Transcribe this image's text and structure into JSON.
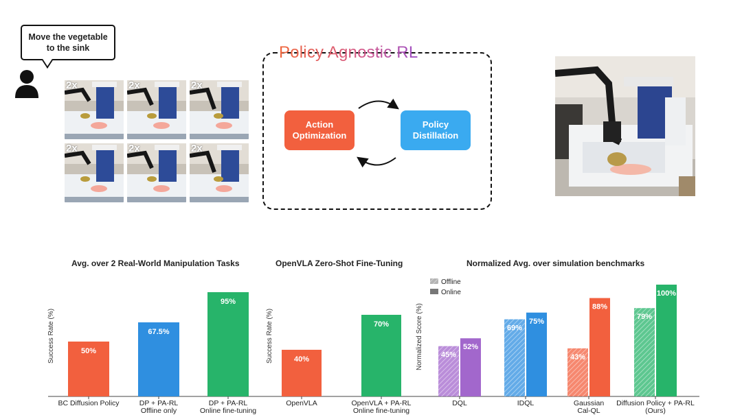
{
  "instruction": {
    "line1": "Move the vegetable",
    "line2": "to the sink"
  },
  "frames": {
    "speed_label": "2x",
    "count": 6
  },
  "pa_rl": {
    "title": "Policy Agnostic RL",
    "left_box": [
      "Action",
      "Optimization"
    ],
    "right_box": [
      "Policy",
      "Distillation"
    ]
  },
  "colors": {
    "red": "#f2603e",
    "blue": "#2f8fe0",
    "green": "#27b46a",
    "purple": "#a267cc",
    "pa_left": "#f2603e",
    "pa_right": "#3aaaf0"
  },
  "chart_data": [
    {
      "type": "bar",
      "title": "Avg. over 2 Real-World Manipulation Tasks",
      "ylabel": "Success Rate (%)",
      "ylim": [
        0,
        100
      ],
      "categories": [
        [
          "BC Diffusion Policy"
        ],
        [
          "DP + PA-RL",
          "Offline only"
        ],
        [
          "DP + PA-RL",
          "Online fine-tuning"
        ]
      ],
      "values": [
        50,
        67.5,
        95
      ],
      "labels": [
        "50%",
        "67.5%",
        "95%"
      ],
      "colors": [
        "#f2603e",
        "#2f8fe0",
        "#27b46a"
      ]
    },
    {
      "type": "bar",
      "title": "OpenVLA Zero-Shot Fine-Tuning",
      "ylabel": "Success Rate (%)",
      "ylim": [
        0,
        100
      ],
      "categories": [
        [
          "OpenVLA"
        ],
        [
          "OpenVLA + PA-RL",
          "Online fine-tuning"
        ]
      ],
      "values": [
        40,
        70
      ],
      "labels": [
        "40%",
        "70%"
      ],
      "colors": [
        "#f2603e",
        "#27b46a"
      ]
    },
    {
      "type": "bar",
      "title": "Normalized Avg. over simulation benchmarks",
      "ylabel": "Normalized Score (%)",
      "ylim": [
        0,
        100
      ],
      "legend": {
        "position": "top-left",
        "entries": [
          "Offline",
          "Online"
        ]
      },
      "categories": [
        [
          "DQL"
        ],
        [
          "IDQL"
        ],
        [
          "Gaussian",
          "Cal-QL"
        ],
        [
          "Diffusion Policy + PA-RL",
          "(Ours)"
        ]
      ],
      "series": [
        {
          "name": "Offline",
          "values": [
            45,
            69,
            43,
            79
          ],
          "labels": [
            "45%",
            "69%",
            "43%",
            "79%"
          ],
          "hatched": true
        },
        {
          "name": "Online",
          "values": [
            52,
            75,
            88,
            100
          ],
          "labels": [
            "52%",
            "75%",
            "88%",
            "100%"
          ],
          "hatched": false
        }
      ],
      "colors": [
        "#a267cc",
        "#2f8fe0",
        "#f2603e",
        "#27b46a"
      ]
    }
  ]
}
